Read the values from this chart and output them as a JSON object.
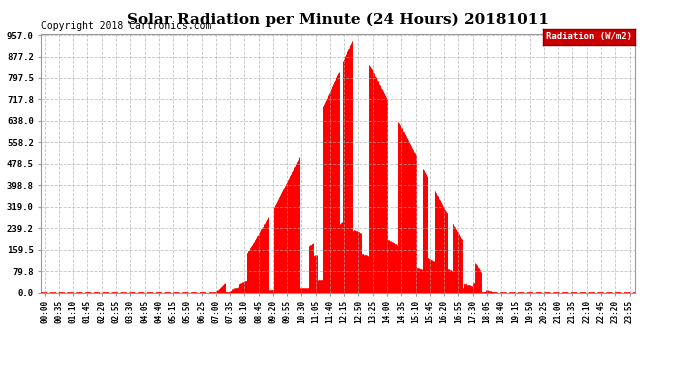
{
  "title": "Solar Radiation per Minute (24 Hours) 20181011",
  "copyright_text": "Copyright 2018 Cartronics.com",
  "legend_label": "Radiation (W/m2)",
  "y_ticks": [
    0.0,
    79.8,
    159.5,
    239.2,
    319.0,
    398.8,
    478.5,
    558.2,
    638.0,
    717.8,
    797.5,
    877.2,
    957.0
  ],
  "y_max": 957.0,
  "bar_color": "#FF0000",
  "dashed_line_color": "#FF0000",
  "background_color": "#FFFFFF",
  "grid_color": "#AAAAAA",
  "title_fontsize": 11,
  "copyright_fontsize": 7,
  "x_tick_interval_minutes": 35,
  "total_minutes": 1440,
  "sunrise_minute": 415,
  "sunset_minute": 1105,
  "peak_minute": 760,
  "peak_value": 957.0
}
